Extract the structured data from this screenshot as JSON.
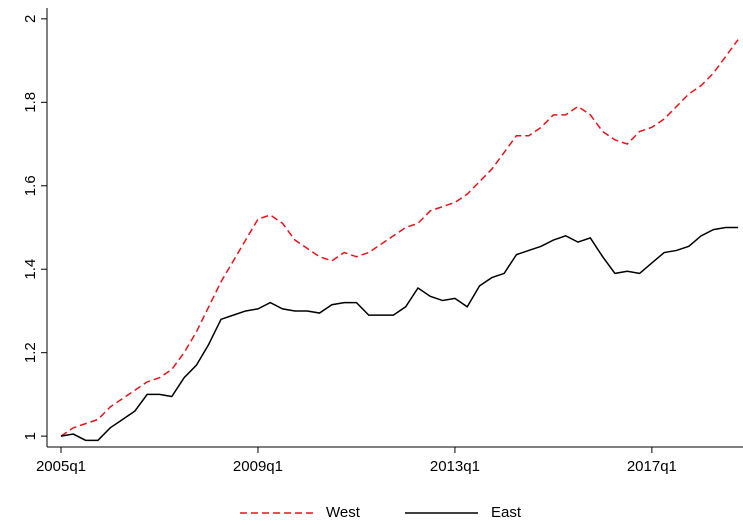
{
  "chart_data": {
    "type": "line",
    "categories": [
      "2005q1",
      null,
      null,
      null,
      null,
      null,
      null,
      null,
      null,
      null,
      null,
      null,
      null,
      null,
      null,
      null,
      "2009q1",
      null,
      null,
      null,
      null,
      null,
      null,
      null,
      null,
      null,
      null,
      null,
      null,
      null,
      null,
      null,
      "2013q1",
      null,
      null,
      null,
      null,
      null,
      null,
      null,
      null,
      null,
      null,
      null,
      null,
      null,
      null,
      null,
      "2017q1",
      null,
      null,
      null,
      null,
      null,
      null,
      null
    ],
    "series": [
      {
        "name": "West",
        "color": "#e8121b",
        "dash": "dashed",
        "values": [
          1.0,
          1.02,
          1.03,
          1.04,
          1.07,
          1.09,
          1.11,
          1.13,
          1.14,
          1.16,
          1.2,
          1.25,
          1.31,
          1.37,
          1.42,
          1.47,
          1.52,
          1.53,
          1.51,
          1.47,
          1.45,
          1.43,
          1.42,
          1.44,
          1.43,
          1.44,
          1.46,
          1.48,
          1.5,
          1.51,
          1.54,
          1.55,
          1.56,
          1.58,
          1.61,
          1.64,
          1.68,
          1.72,
          1.72,
          1.74,
          1.77,
          1.77,
          1.79,
          1.77,
          1.73,
          1.71,
          1.7,
          1.73,
          1.74,
          1.76,
          1.79,
          1.82,
          1.84,
          1.87,
          1.91,
          1.95
        ]
      },
      {
        "name": "East",
        "color": "#000000",
        "dash": "solid",
        "values": [
          1.0,
          1.005,
          0.99,
          0.99,
          1.02,
          1.04,
          1.06,
          1.1,
          1.1,
          1.095,
          1.14,
          1.17,
          1.22,
          1.28,
          1.29,
          1.3,
          1.305,
          1.32,
          1.305,
          1.3,
          1.3,
          1.295,
          1.315,
          1.32,
          1.32,
          1.29,
          1.29,
          1.29,
          1.31,
          1.355,
          1.335,
          1.325,
          1.33,
          1.31,
          1.36,
          1.38,
          1.39,
          1.435,
          1.445,
          1.455,
          1.47,
          1.48,
          1.465,
          1.475,
          1.43,
          1.39,
          1.395,
          1.39,
          1.415,
          1.44,
          1.445,
          1.455,
          1.48,
          1.495,
          1.5,
          1.5
        ]
      }
    ],
    "ylim": [
      0.974,
      2.026
    ],
    "yticks": [
      1,
      1.2,
      1.4,
      1.6,
      1.8,
      2
    ],
    "grid": false,
    "legend": "bottom"
  }
}
